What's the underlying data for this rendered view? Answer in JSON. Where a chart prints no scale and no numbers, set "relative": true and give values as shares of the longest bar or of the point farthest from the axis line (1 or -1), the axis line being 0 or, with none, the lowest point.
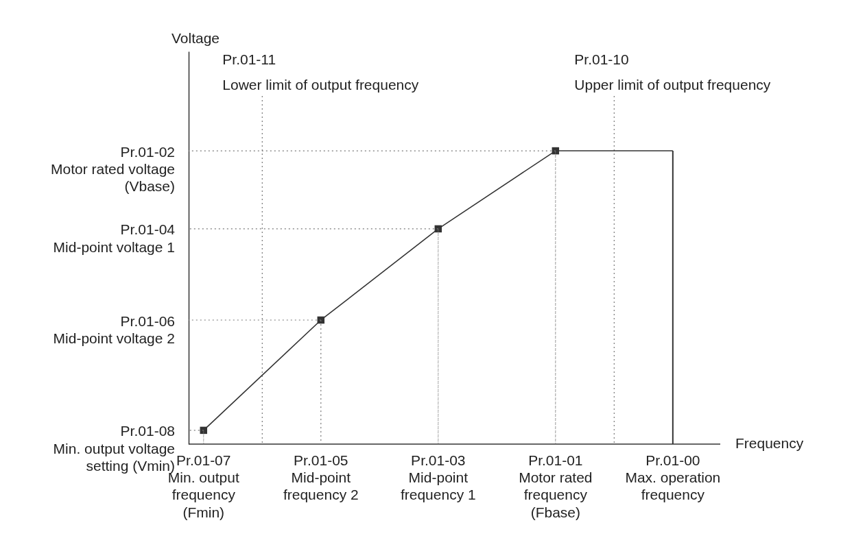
{
  "chart_data": {
    "type": "line",
    "relative": true,
    "xlabel": "Frequency",
    "grid": false,
    "categories": [
      "Pr.01-07\nMin. output\nfrequency\n(Fmin)",
      "Pr.01-05\nMid-point\nfrequency 2",
      "Pr.01-03\nMid-point\nfrequency 1",
      "Pr.01-01\nMotor rated\nfrequency\n(Fbase)",
      "Pr.01-00\nMax. operation\nfrequency"
    ],
    "series": [
      {
        "color": "#333333",
        "marker": "none",
        "line_style": "solid",
        "values": [
          0.047,
          0.423,
          0.734,
          1,
          1
        ]
      },
      {
        "type": "scatter",
        "color": "#333333",
        "marker": "square",
        "values": [
          0.047,
          0.423,
          0.734,
          1,
          null
        ]
      },
      {
        "type": "bar",
        "color": "#777777",
        "line_style": "dotted",
        "values": [
          0.047,
          0.423,
          0.734,
          1,
          null
        ]
      },
      {
        "type": "bar",
        "color": "#333333",
        "line_style": "solid",
        "values": [
          null,
          null,
          null,
          null,
          1
        ]
      }
    ],
    "annotations": [
      "Voltage",
      "Pr.01-11\nLower limit of output frequency",
      "Pr.01-10\nUpper limit of output frequency",
      "Pr.01-02\nMotor rated voltage\n(Vbase)",
      "Pr.01-04\nMid-point voltage 1",
      "Pr.01-06\nMid-point voltage 2",
      "Pr.01-08\nMin. output voltage\nsetting (Vmin)"
    ]
  }
}
